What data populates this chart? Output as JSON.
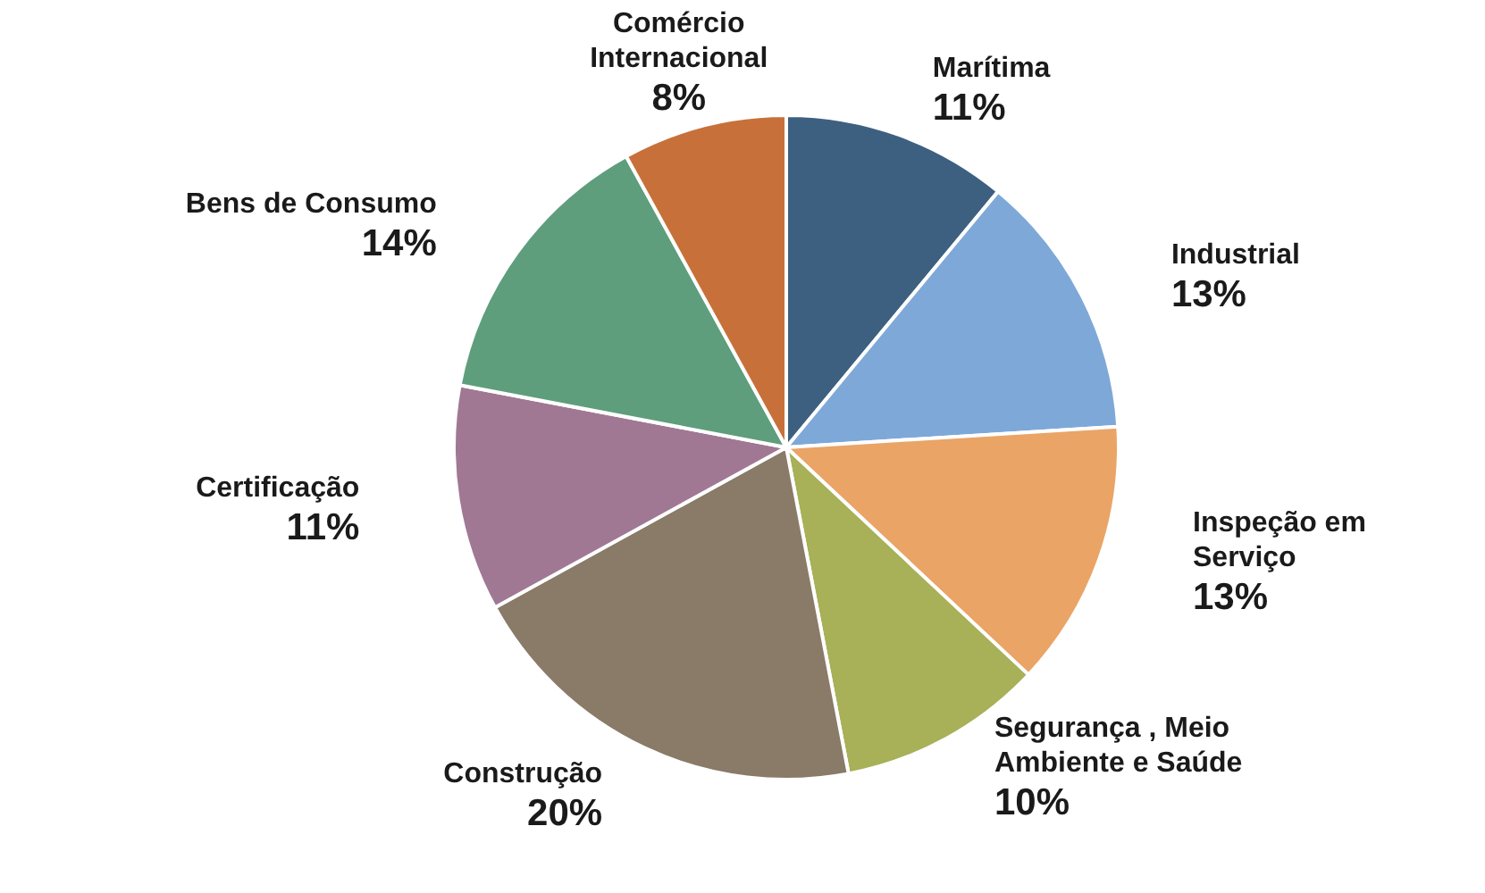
{
  "chart_data": {
    "type": "pie",
    "categories": [
      "Marítima",
      "Industrial",
      "Inspeção em\nServiço",
      "Segurança , Meio\nAmbiente e Saúde",
      "Construção",
      "Certificação",
      "Bens de Consumo",
      "Comércio\nInternacional"
    ],
    "values": [
      11,
      13,
      13,
      10,
      20,
      11,
      14,
      8
    ],
    "colors": [
      "#3d6080",
      "#7ea8d8",
      "#eaa466",
      "#a8b058",
      "#8a7a68",
      "#a07894",
      "#5e9e7c",
      "#c8703a"
    ],
    "value_labels": [
      "11%",
      "13%",
      "13%",
      "10%",
      "20%",
      "11%",
      "14%",
      "8%"
    ]
  }
}
